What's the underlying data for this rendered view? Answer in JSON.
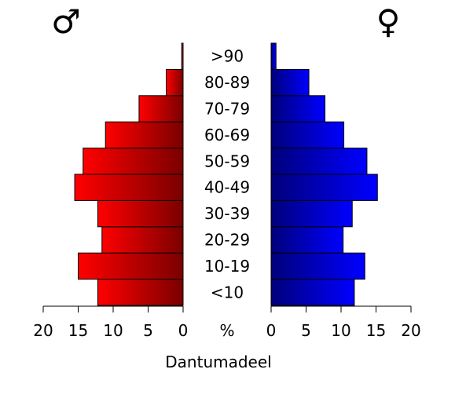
{
  "chart_data": {
    "type": "bar",
    "subtype": "population-pyramid",
    "categories": [
      "<10",
      "10-19",
      "20-29",
      "30-39",
      "40-49",
      "50-59",
      "60-69",
      "70-79",
      "80-89",
      ">90"
    ],
    "series": [
      {
        "name": "♂",
        "values": [
          12.2,
          15.0,
          11.6,
          12.2,
          15.5,
          14.3,
          11.1,
          6.3,
          2.4,
          0.2
        ],
        "color_light": "#ff0000",
        "color_dark": "#7a0000"
      },
      {
        "name": "♀",
        "values": [
          11.9,
          13.4,
          10.3,
          11.6,
          15.2,
          13.7,
          10.4,
          7.7,
          5.4,
          0.7
        ],
        "color_light": "#0000ff",
        "color_dark": "#00007a"
      }
    ],
    "xlabel": "Dantumadeel",
    "center_label": "%",
    "male_symbol": "♂",
    "female_symbol": "♀",
    "xlim": [
      0,
      20
    ],
    "xticks": [
      0,
      5,
      10,
      15,
      20
    ],
    "xtick_labels_left": [
      "20",
      "15",
      "10",
      "5",
      "0"
    ],
    "xtick_labels_right": [
      "0",
      "5",
      "10",
      "15",
      "20"
    ],
    "grid": false
  }
}
